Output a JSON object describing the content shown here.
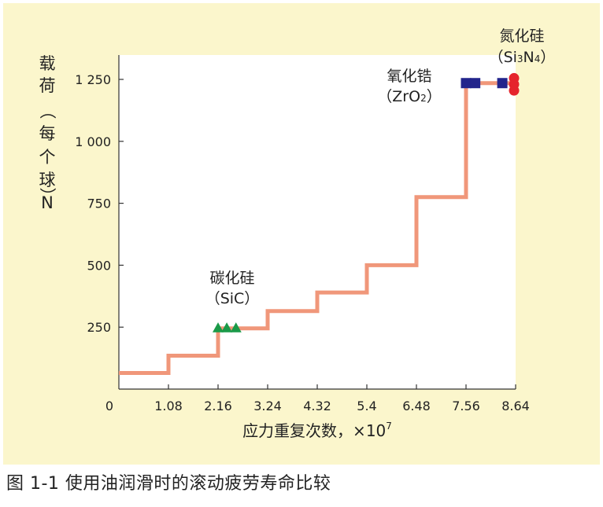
{
  "chart_data": {
    "type": "line",
    "xlabel_main": "应力重复次数，×10",
    "xlabel_exp": "7",
    "ylabel_lines": [
      "载",
      "荷",
      "（",
      "每",
      "个",
      "球",
      "）",
      "N"
    ],
    "x_ticks": [
      {
        "value": 0,
        "label": "0"
      },
      {
        "value": 1.08,
        "label": "1.08"
      },
      {
        "value": 2.16,
        "label": "2.16"
      },
      {
        "value": 3.24,
        "label": "3.24"
      },
      {
        "value": 4.32,
        "label": "4.32"
      },
      {
        "value": 5.4,
        "label": "5.4"
      },
      {
        "value": 6.48,
        "label": "6.48"
      },
      {
        "value": 7.56,
        "label": "7.56"
      },
      {
        "value": 8.64,
        "label": "8.64"
      }
    ],
    "y_ticks": [
      {
        "value": 250,
        "label": "250"
      },
      {
        "value": 500,
        "label": "500"
      },
      {
        "value": 750,
        "label": "750"
      },
      {
        "value": 1000,
        "label": "1 000"
      },
      {
        "value": 1250,
        "label": "1 250"
      }
    ],
    "xlim": [
      0,
      8.64
    ],
    "ylim": [
      0,
      1250
    ],
    "step_line": {
      "color": "#f0977a",
      "points": [
        [
          0,
          65
        ],
        [
          1.08,
          65
        ],
        [
          1.08,
          135
        ],
        [
          2.16,
          135
        ],
        [
          2.16,
          245
        ],
        [
          3.24,
          245
        ],
        [
          3.24,
          315
        ],
        [
          4.32,
          315
        ],
        [
          4.32,
          390
        ],
        [
          5.4,
          390
        ],
        [
          5.4,
          500
        ],
        [
          6.48,
          500
        ],
        [
          6.48,
          775
        ],
        [
          7.56,
          775
        ],
        [
          7.56,
          1235
        ],
        [
          8.64,
          1235
        ]
      ]
    },
    "markers": {
      "sic": {
        "shape": "triangle",
        "color": "#1a9a48",
        "x": [
          2.16,
          2.35,
          2.55
        ],
        "y": 245
      },
      "zro2": {
        "shape": "square",
        "color": "#23258c",
        "x": [
          7.56,
          7.76,
          8.35
        ],
        "y": 1235
      },
      "si3n4": {
        "shape": "circle",
        "color": "#e5242c",
        "x": 8.64,
        "y": [
          1255,
          1230,
          1205
        ]
      }
    },
    "annotations": {
      "sic": {
        "line1": "碳化硅",
        "line2": "（SiC）"
      },
      "zro2": {
        "line1": "氧化锆",
        "line2_a": "（ZrO",
        "line2_sub": "2",
        "line2_b": "）"
      },
      "si3n4": {
        "line1": "氮化硅",
        "line2_a": "（Si",
        "line2_sub1": "3",
        "line2_b": "N",
        "line2_sub2": "4",
        "line2_c": "）"
      }
    },
    "grid": false,
    "legend": "none"
  },
  "caption": "图 1-1  使用油润滑时的滚动疲劳寿命比较"
}
